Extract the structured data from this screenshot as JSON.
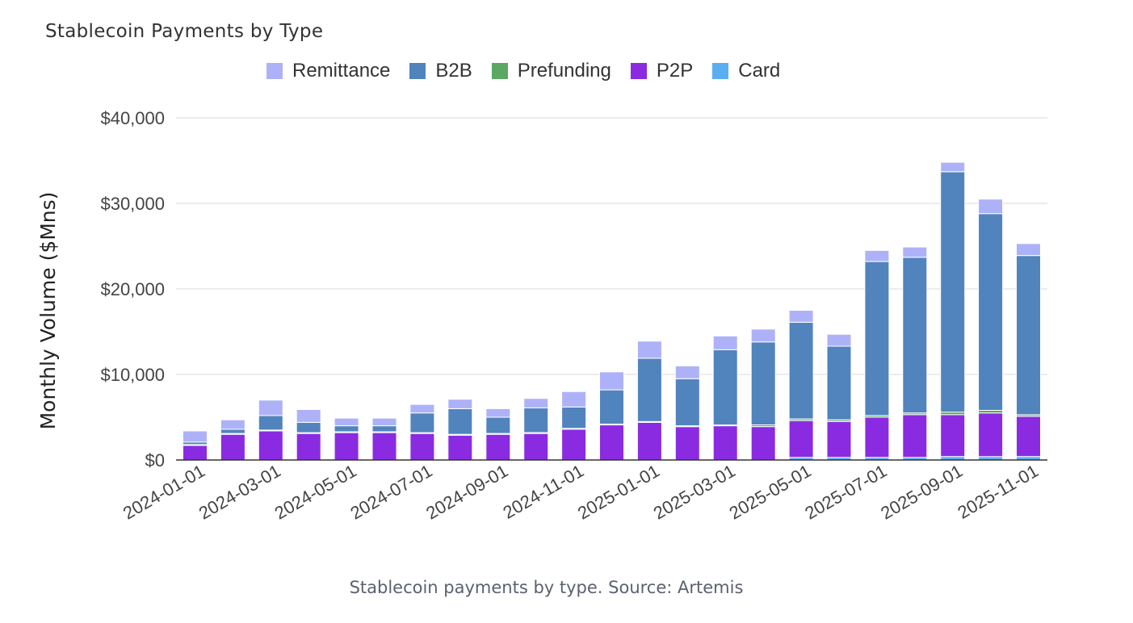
{
  "caption": "Stablecoin payments by type. Source: Artemis",
  "chart_data": {
    "type": "bar",
    "stacked": true,
    "title": "Stablecoin Payments by Type",
    "xlabel": "",
    "ylabel": "Monthly Volume ($Mns)",
    "ylim": [
      0,
      40000
    ],
    "yticks": [
      0,
      10000,
      20000,
      30000,
      40000
    ],
    "ytick_labels": [
      "$0",
      "$10,000",
      "$20,000",
      "$30,000",
      "$40,000"
    ],
    "legend_position": "top",
    "categories": [
      "2024-01-01",
      "2024-02-01",
      "2024-03-01",
      "2024-04-01",
      "2024-05-01",
      "2024-06-01",
      "2024-07-01",
      "2024-08-01",
      "2024-09-01",
      "2024-10-01",
      "2024-11-01",
      "2024-12-01",
      "2025-01-01",
      "2025-02-01",
      "2025-03-01",
      "2025-04-01",
      "2025-05-01",
      "2025-06-01",
      "2025-07-01",
      "2025-08-01",
      "2025-09-01",
      "2025-10-01",
      "2025-11-01"
    ],
    "xtick_labels": [
      "2024-01-01",
      "2024-03-01",
      "2024-05-01",
      "2024-07-01",
      "2024-09-01",
      "2024-11-01",
      "2025-01-01",
      "2025-03-01",
      "2025-05-01",
      "2025-07-01",
      "2025-09-01",
      "2025-11-01"
    ],
    "series": [
      {
        "name": "Card",
        "color": "#5aaef2",
        "values": [
          0,
          0,
          0,
          0,
          0,
          0,
          0,
          0,
          0,
          0,
          0,
          0,
          0,
          0,
          0,
          0,
          300,
          300,
          300,
          300,
          400,
          400,
          400
        ]
      },
      {
        "name": "P2P",
        "color": "#8a2be2",
        "values": [
          1700,
          3000,
          3400,
          3100,
          3200,
          3200,
          3100,
          2900,
          3000,
          3100,
          3600,
          4100,
          4400,
          3900,
          4000,
          3900,
          4300,
          4200,
          4700,
          5000,
          4900,
          5100,
          4700
        ]
      },
      {
        "name": "Prefunding",
        "color": "#5aa864",
        "values": [
          100,
          100,
          100,
          100,
          100,
          100,
          100,
          100,
          100,
          100,
          100,
          100,
          100,
          100,
          100,
          200,
          200,
          200,
          200,
          200,
          300,
          300,
          200
        ]
      },
      {
        "name": "B2B",
        "color": "#5184bd",
        "values": [
          300,
          500,
          1700,
          1200,
          700,
          700,
          2300,
          3000,
          1900,
          2900,
          2500,
          4000,
          7400,
          5500,
          8800,
          9700,
          11300,
          8600,
          18000,
          18200,
          28100,
          23000,
          18600
        ]
      },
      {
        "name": "Remittance",
        "color": "#adb2f8",
        "values": [
          1300,
          1100,
          1800,
          1500,
          900,
          900,
          1000,
          1100,
          1000,
          1100,
          1800,
          2100,
          2000,
          1500,
          1600,
          1500,
          1400,
          1400,
          1300,
          1200,
          1100,
          1700,
          1400
        ]
      }
    ]
  }
}
